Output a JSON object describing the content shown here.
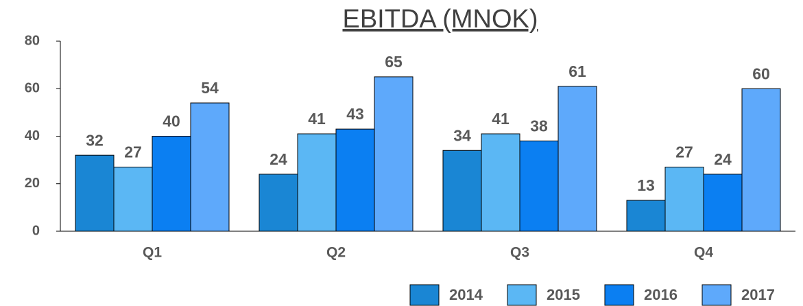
{
  "chart_data": {
    "type": "bar",
    "title": "EBITDA (MNOK)",
    "categories": [
      "Q1",
      "Q2",
      "Q3",
      "Q4"
    ],
    "series": [
      {
        "name": "2014",
        "color": "#1a86d4",
        "values": [
          32,
          24,
          34,
          13
        ]
      },
      {
        "name": "2015",
        "color": "#5bb7f4",
        "values": [
          27,
          41,
          41,
          27
        ]
      },
      {
        "name": "2016",
        "color": "#0b7ff2",
        "values": [
          40,
          43,
          38,
          24
        ]
      },
      {
        "name": "2017",
        "color": "#5ea9fb",
        "values": [
          54,
          65,
          61,
          60
        ]
      }
    ],
    "ylim": [
      0,
      80
    ],
    "yticks": [
      0,
      20,
      40,
      60,
      80
    ],
    "legend": "bottom-right"
  }
}
